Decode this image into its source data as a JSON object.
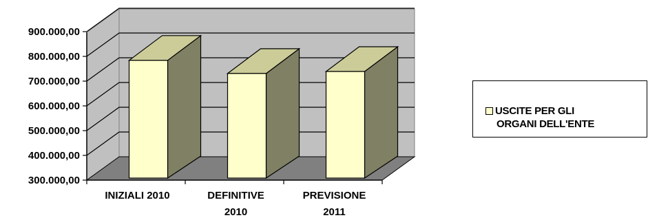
{
  "chart_data": {
    "type": "bar",
    "style": "3d-column",
    "categories": [
      [
        "INIZIALI 2010"
      ],
      [
        "DEFINITIVE",
        "2010"
      ],
      [
        "PREVISIONE",
        "2011"
      ]
    ],
    "series": [
      {
        "name": "USCITE PER GLI ORGANI DELL'ENTE",
        "values": [
          795000,
          742000,
          750000
        ]
      }
    ],
    "yticks": [
      "300.000,00",
      "400.000,00",
      "500.000,00",
      "600.000,00",
      "700.000,00",
      "800.000,00",
      "900.000,00"
    ],
    "ylim": [
      300000,
      950000
    ],
    "grid": true,
    "legend_position": "right",
    "colors": {
      "bar_front": "#FFFFCC",
      "bar_side": "#808064",
      "bar_top": "#CCCC99",
      "wall": "#C0C0C0",
      "floor": "#808080"
    }
  },
  "legend": {
    "label_line1": "USCITE PER GLI",
    "label_line2": "ORGANI DELL'ENTE"
  }
}
